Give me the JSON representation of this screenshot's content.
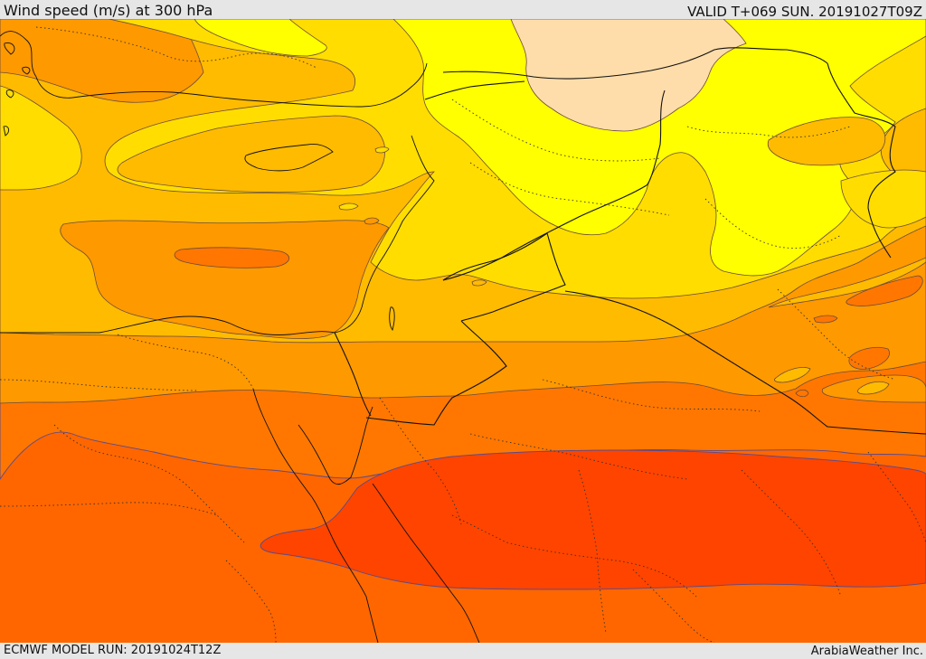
{
  "header": {
    "title": "Wind speed (m/s) at 300 hPa",
    "valid": "VALID T+069 SUN. 20191027T09Z"
  },
  "footer": {
    "model_run": "ECMWF MODEL RUN: 20191024T12Z",
    "credit": "ArabiaWeather Inc."
  },
  "colors": {
    "band_15_20": "#ffddaa",
    "band_20_25": "#ffff00",
    "band_25_30": "#ffdd00",
    "band_30_35": "#ffbb00",
    "band_35_40": "#ff9900",
    "band_40_45": "#ff7700",
    "band_45_50": "#ff6600",
    "band_50_55": "#ff4400"
  }
}
